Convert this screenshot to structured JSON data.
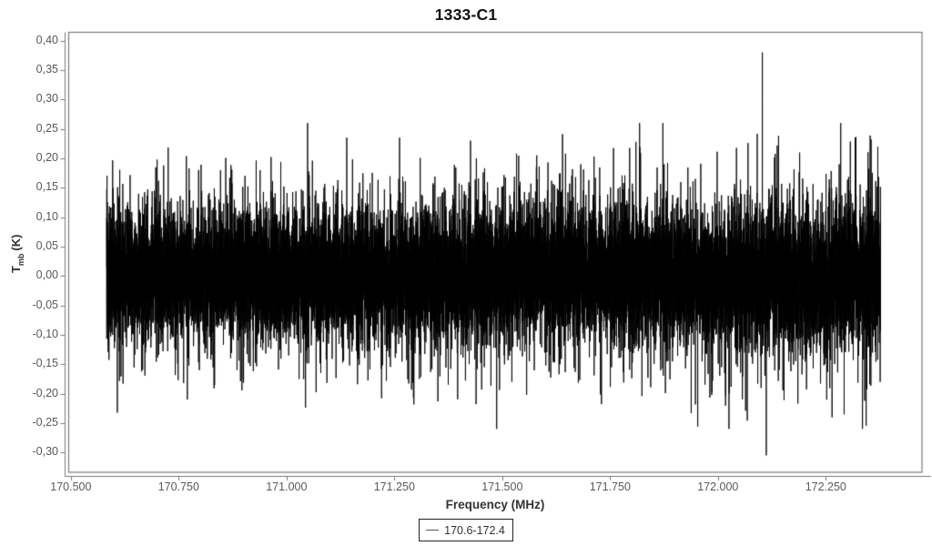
{
  "chart_data": {
    "type": "line",
    "title": "1333-C1",
    "xlabel": "Frequency (MHz)",
    "ylabel": {
      "symbol": "T",
      "subscript": "mb",
      "unit": "(K)"
    },
    "legend": {
      "position": "bottom-center",
      "entries": [
        {
          "label": "170.6-172.4",
          "color": "#000000"
        }
      ]
    },
    "xlim": [
      170.494,
      172.473
    ],
    "ylim": [
      -0.333,
      0.415
    ],
    "x_ticks": [
      {
        "value": 170.5,
        "label": "170.500"
      },
      {
        "value": 170.75,
        "label": "170.750"
      },
      {
        "value": 171.0,
        "label": "171.000"
      },
      {
        "value": 171.25,
        "label": "171.250"
      },
      {
        "value": 171.5,
        "label": "171.500"
      },
      {
        "value": 171.75,
        "label": "171.750"
      },
      {
        "value": 172.0,
        "label": "172.000"
      },
      {
        "value": 172.25,
        "label": "172.250"
      }
    ],
    "y_ticks": [
      {
        "value": 0.4,
        "label": "0,40"
      },
      {
        "value": 0.35,
        "label": "0,35"
      },
      {
        "value": 0.3,
        "label": "0,30"
      },
      {
        "value": 0.25,
        "label": "0,25"
      },
      {
        "value": 0.2,
        "label": "0,20"
      },
      {
        "value": 0.15,
        "label": "0,15"
      },
      {
        "value": 0.1,
        "label": "0,10"
      },
      {
        "value": 0.05,
        "label": "0,05"
      },
      {
        "value": 0.0,
        "label": "0,00"
      },
      {
        "value": -0.05,
        "label": "-0,05"
      },
      {
        "value": -0.1,
        "label": "-0,10"
      },
      {
        "value": -0.15,
        "label": "-0,15"
      },
      {
        "value": -0.2,
        "label": "-0,20"
      },
      {
        "value": -0.25,
        "label": "-0,25"
      },
      {
        "value": -0.3,
        "label": "-0,30"
      }
    ],
    "grid": false,
    "frame_color": "#7a7a7a",
    "tick_label_color": "#595959",
    "axis_label_color": "#333333",
    "title_color": "#111111",
    "series": [
      {
        "name": "170.6-172.4",
        "color": "#000000",
        "x_start": 170.583,
        "x_end": 172.377,
        "points": 16000,
        "noise_sigma_core": 0.05,
        "noise_sigma_tail": 0.082,
        "tail_fraction": 0.2,
        "baseline_wiggle_amp": 0.006,
        "seed": 1333,
        "spikes": [
          {
            "x": 172.103,
            "y": 0.38
          },
          {
            "x": 172.112,
            "y": -0.305
          },
          {
            "x": 171.262,
            "y": 0.235
          },
          {
            "x": 172.318,
            "y": 0.235
          },
          {
            "x": 172.355,
            "y": 0.232
          },
          {
            "x": 171.81,
            "y": 0.228
          },
          {
            "x": 172.068,
            "y": -0.246
          },
          {
            "x": 171.58,
            "y": 0.205
          },
          {
            "x": 170.7,
            "y": 0.198
          },
          {
            "x": 171.06,
            "y": 0.196
          },
          {
            "x": 171.44,
            "y": 0.2
          },
          {
            "x": 170.77,
            "y": -0.21
          },
          {
            "x": 171.73,
            "y": -0.218
          },
          {
            "x": 172.34,
            "y": -0.212
          }
        ]
      }
    ]
  }
}
